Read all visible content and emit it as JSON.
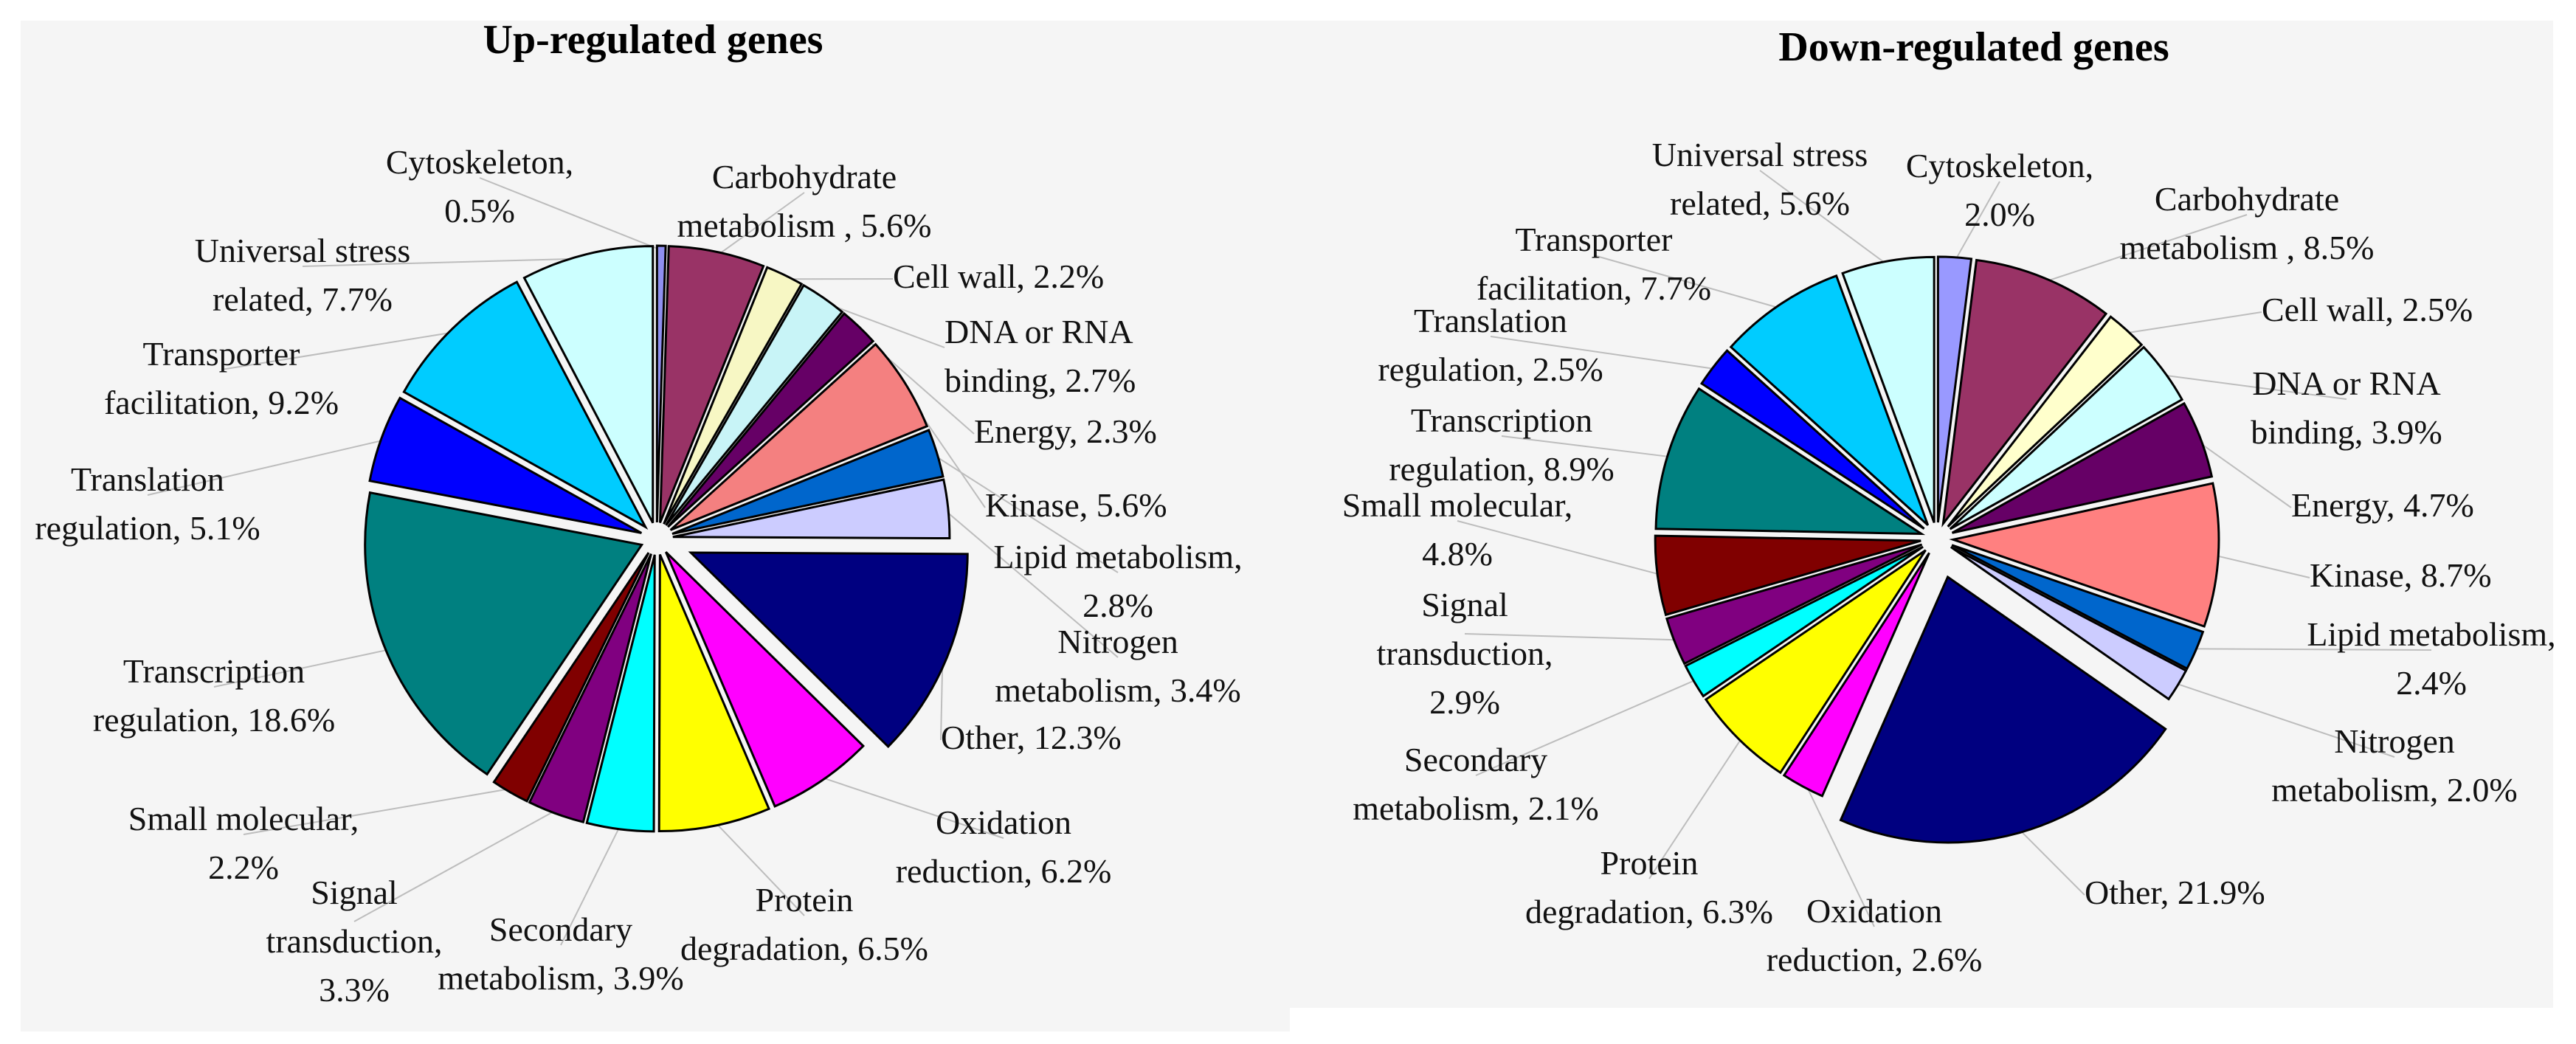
{
  "chart_data": [
    {
      "type": "pie",
      "title": "Up-regulated genes",
      "slices": [
        {
          "label": "Cytoskeleton, 0.5%",
          "value": 0.5,
          "color": "#8f8ff0"
        },
        {
          "label": "Carbohydrate metabolism , 5.6%",
          "value": 5.6,
          "color": "#993366"
        },
        {
          "label": "Cell wall, 2.2%",
          "value": 2.2,
          "color": "#f7f7c4"
        },
        {
          "label": "DNA or RNA binding, 2.7%",
          "value": 2.7,
          "color": "#c8f4f7"
        },
        {
          "label": "Energy, 2.3%",
          "value": 2.3,
          "color": "#660066"
        },
        {
          "label": "Kinase, 5.6%",
          "value": 5.6,
          "color": "#f48080"
        },
        {
          "label": "Lipid metabolism, 2.8%",
          "value": 2.8,
          "color": "#0066cc"
        },
        {
          "label": "Nitrogen metabolism, 3.4%",
          "value": 3.4,
          "color": "#ccccff"
        },
        {
          "label": "Other, 12.3%",
          "value": 12.3,
          "color": "#000080"
        },
        {
          "label": "Oxidation reduction, 6.2%",
          "value": 6.2,
          "color": "#ff00ff"
        },
        {
          "label": "Protein degradation, 6.5%",
          "value": 6.5,
          "color": "#ffff00"
        },
        {
          "label": "Secondary metabolism, 3.9%",
          "value": 3.9,
          "color": "#00ffff"
        },
        {
          "label": "Signal transduction, 3.3%",
          "value": 3.3,
          "color": "#800080"
        },
        {
          "label": "Small molecular, 2.2%",
          "value": 2.2,
          "color": "#800000"
        },
        {
          "label": "Transcription regulation, 18.6%",
          "value": 18.6,
          "color": "#008080"
        },
        {
          "label": "Translation regulation, 5.1%",
          "value": 5.1,
          "color": "#0000ff"
        },
        {
          "label": "Transporter facilitation, 9.2%",
          "value": 9.2,
          "color": "#00ccff"
        },
        {
          "label": "Universal stress related, 7.7%",
          "value": 7.7,
          "color": "#ccffff"
        }
      ]
    },
    {
      "type": "pie",
      "title": "Down-regulated genes",
      "slices": [
        {
          "label": "Cytoskeleton, 2.0%",
          "value": 2.0,
          "color": "#9999ff"
        },
        {
          "label": "Carbohydrate metabolism , 8.5%",
          "value": 8.5,
          "color": "#993366"
        },
        {
          "label": "Cell wall, 2.5%",
          "value": 2.5,
          "color": "#ffffcc"
        },
        {
          "label": "DNA or RNA binding, 3.9%",
          "value": 3.9,
          "color": "#ccffff"
        },
        {
          "label": "Energy, 4.7%",
          "value": 4.7,
          "color": "#660066"
        },
        {
          "label": "Kinase, 8.7%",
          "value": 8.7,
          "color": "#ff8080"
        },
        {
          "label": "Lipid metabolism, 2.4%",
          "value": 2.4,
          "color": "#0066cc"
        },
        {
          "label": "Nitrogen metabolism, 2.0%",
          "value": 2.0,
          "color": "#ccccff"
        },
        {
          "label": "Other, 21.9%",
          "value": 21.9,
          "color": "#000080"
        },
        {
          "label": "Oxidation reduction, 2.6%",
          "value": 2.6,
          "color": "#ff00ff"
        },
        {
          "label": "Protein degradation, 6.3%",
          "value": 6.3,
          "color": "#ffff00"
        },
        {
          "label": "Secondary metabolism, 2.1%",
          "value": 2.1,
          "color": "#00ffff"
        },
        {
          "label": "Signal transduction, 2.9%",
          "value": 2.9,
          "color": "#800080"
        },
        {
          "label": "Small molecular, 4.8%",
          "value": 4.8,
          "color": "#800000"
        },
        {
          "label": "Transcription regulation, 8.9%",
          "value": 8.9,
          "color": "#008080"
        },
        {
          "label": "Translation regulation, 2.5%",
          "value": 2.5,
          "color": "#0000ff"
        },
        {
          "label": "Transporter facilitation, 7.7%",
          "value": 7.7,
          "color": "#00ccff"
        },
        {
          "label": "Universal stress related, 5.6%",
          "value": 5.6,
          "color": "#ccffff"
        }
      ]
    }
  ]
}
